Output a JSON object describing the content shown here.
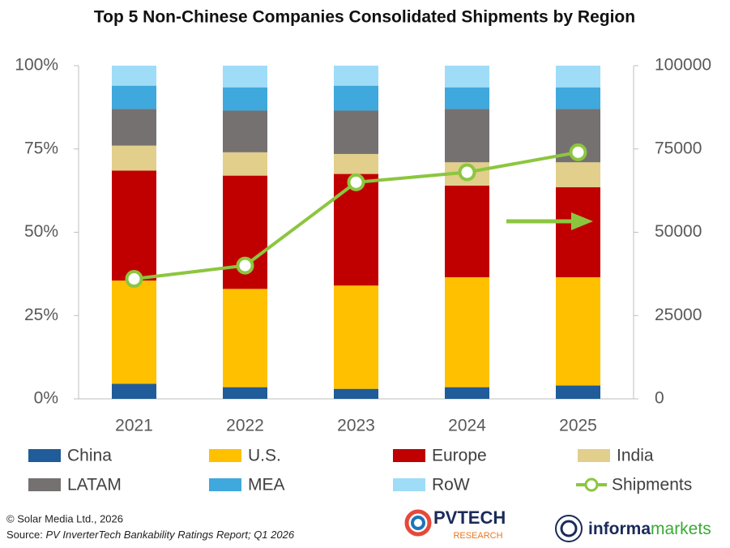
{
  "chart_data": {
    "type": "bar",
    "stacked": true,
    "title": "Top 5 Non-Chinese Companies Consolidated Shipments by Region",
    "categories": [
      "2021",
      "2022",
      "2023",
      "2024",
      "2025"
    ],
    "series": [
      {
        "name": "China",
        "color": "#1f5c99",
        "values": [
          4.5,
          3.5,
          3,
          3.5,
          4
        ]
      },
      {
        "name": "U.S.",
        "color": "#ffc000",
        "values": [
          31,
          29.5,
          31,
          33,
          32.5
        ]
      },
      {
        "name": "Europe",
        "color": "#c00000",
        "values": [
          33,
          34,
          33.5,
          27.5,
          27
        ]
      },
      {
        "name": "India",
        "color": "#e2cf8c",
        "values": [
          7.5,
          7,
          6,
          7,
          7.5
        ]
      },
      {
        "name": "LATAM",
        "color": "#767171",
        "values": [
          11,
          12.5,
          13,
          16,
          16
        ]
      },
      {
        "name": "MEA",
        "color": "#3fa8dc",
        "values": [
          7,
          7,
          7.5,
          6.5,
          6.5
        ]
      },
      {
        "name": "RoW",
        "color": "#9fdcf7",
        "values": [
          6,
          6.5,
          6,
          6.5,
          6.5
        ]
      },
      {
        "name": "Shipments",
        "type": "line",
        "axis": "y2",
        "color": "#8cc63f",
        "values": [
          36000,
          40000,
          65000,
          68000,
          74000
        ]
      }
    ],
    "ylim": [
      0,
      100
    ],
    "yticks": [
      {
        "value": 0,
        "label": "0%"
      },
      {
        "value": 25,
        "label": "25%"
      },
      {
        "value": 50,
        "label": "50%"
      },
      {
        "value": 75,
        "label": "75%"
      },
      {
        "value": 100,
        "label": "100%"
      }
    ],
    "y2lim": [
      0,
      100000
    ],
    "y2ticks": [
      0,
      25000,
      50000,
      75000,
      100000
    ],
    "grid": false
  },
  "footer": {
    "copyright": "© Solar Media Ltd., 2026",
    "source_prefix": "Source:",
    "source_title": "PV InverterTech Bankability Ratings Report; Q1 2026"
  },
  "logos": {
    "pvtech": "PVTECH",
    "pvtech_sub": "RESEARCH",
    "informa": "informa",
    "markets": "markets"
  }
}
